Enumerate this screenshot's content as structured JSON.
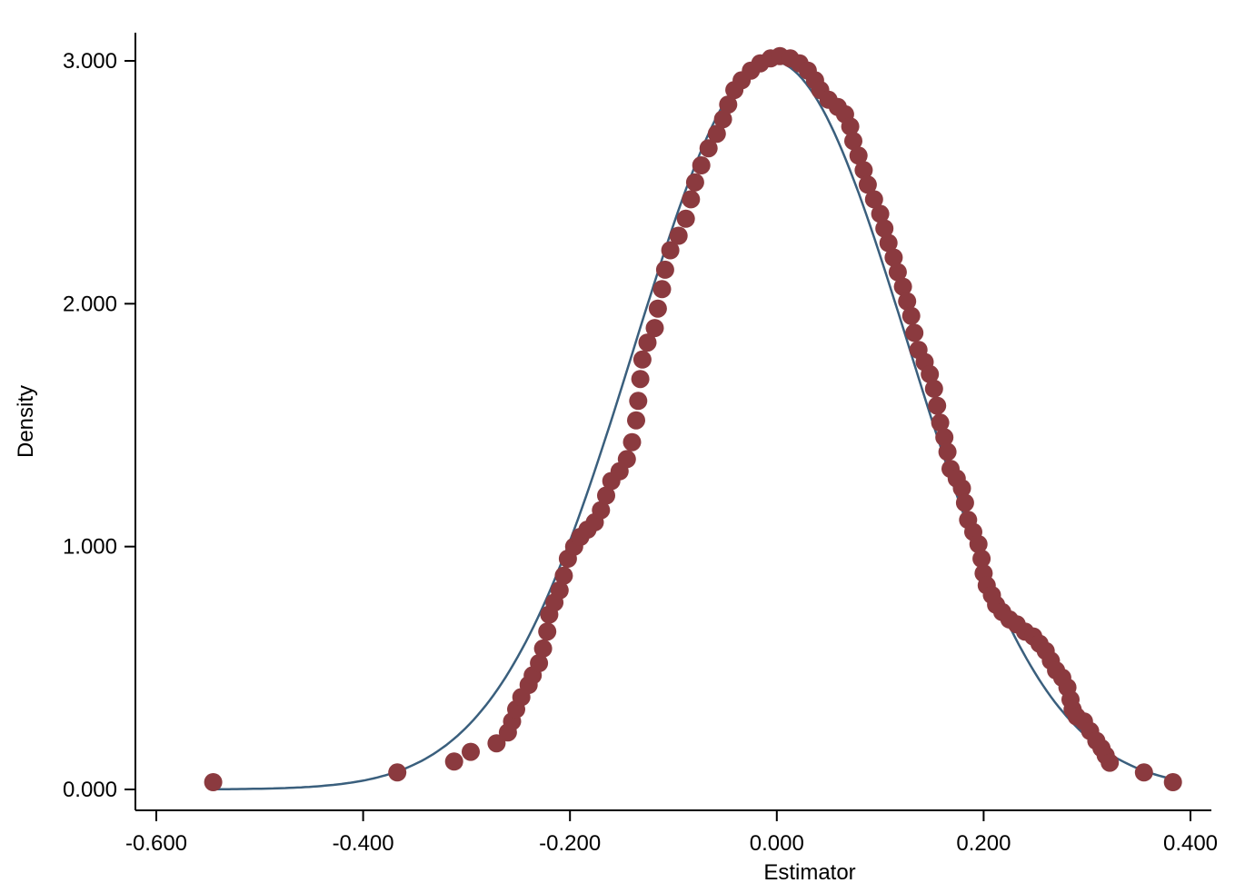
{
  "chart_data": {
    "type": "scatter",
    "title": "",
    "xlabel": "Estimator",
    "ylabel": "Density",
    "xlim": [
      -0.6,
      0.4
    ],
    "ylim": [
      0,
      3
    ],
    "x_ticks": [
      -0.6,
      -0.4,
      -0.2,
      0.0,
      0.2,
      0.4
    ],
    "x_tick_labels": [
      "-0.600",
      "-0.400",
      "-0.200",
      "0.000",
      "0.200",
      "0.400"
    ],
    "y_ticks": [
      0,
      1,
      2,
      3
    ],
    "y_tick_labels": [
      "0.000",
      "1.000",
      "2.000",
      "3.000"
    ],
    "grid": false,
    "legend": "none",
    "colors": {
      "points": "#8b3a3f",
      "curve": "#3a5f7d",
      "axis": "#000000",
      "background": "#ffffff"
    },
    "series": [
      {
        "type": "scatter",
        "points": [
          [
            -0.545,
            0.03
          ],
          [
            -0.367,
            0.07
          ],
          [
            -0.312,
            0.115
          ],
          [
            -0.296,
            0.155
          ],
          [
            -0.271,
            0.19
          ],
          [
            -0.26,
            0.235
          ],
          [
            -0.256,
            0.28
          ],
          [
            -0.252,
            0.33
          ],
          [
            -0.247,
            0.38
          ],
          [
            -0.24,
            0.43
          ],
          [
            -0.236,
            0.47
          ],
          [
            -0.23,
            0.52
          ],
          [
            -0.226,
            0.58
          ],
          [
            -0.222,
            0.65
          ],
          [
            -0.22,
            0.72
          ],
          [
            -0.215,
            0.77
          ],
          [
            -0.21,
            0.82
          ],
          [
            -0.206,
            0.88
          ],
          [
            -0.202,
            0.95
          ],
          [
            -0.196,
            1.0
          ],
          [
            -0.19,
            1.04
          ],
          [
            -0.183,
            1.07
          ],
          [
            -0.176,
            1.1
          ],
          [
            -0.17,
            1.15
          ],
          [
            -0.165,
            1.21
          ],
          [
            -0.16,
            1.27
          ],
          [
            -0.152,
            1.31
          ],
          [
            -0.145,
            1.36
          ],
          [
            -0.14,
            1.43
          ],
          [
            -0.136,
            1.52
          ],
          [
            -0.134,
            1.6
          ],
          [
            -0.132,
            1.69
          ],
          [
            -0.13,
            1.77
          ],
          [
            -0.125,
            1.84
          ],
          [
            -0.118,
            1.9
          ],
          [
            -0.115,
            1.98
          ],
          [
            -0.111,
            2.06
          ],
          [
            -0.108,
            2.14
          ],
          [
            -0.103,
            2.22
          ],
          [
            -0.095,
            2.28
          ],
          [
            -0.088,
            2.35
          ],
          [
            -0.083,
            2.43
          ],
          [
            -0.079,
            2.5
          ],
          [
            -0.073,
            2.57
          ],
          [
            -0.066,
            2.64
          ],
          [
            -0.058,
            2.7
          ],
          [
            -0.052,
            2.76
          ],
          [
            -0.047,
            2.82
          ],
          [
            -0.041,
            2.88
          ],
          [
            -0.034,
            2.92
          ],
          [
            -0.025,
            2.96
          ],
          [
            -0.016,
            2.99
          ],
          [
            -0.006,
            3.01
          ],
          [
            0.003,
            3.02
          ],
          [
            0.013,
            3.01
          ],
          [
            0.022,
            2.99
          ],
          [
            0.03,
            2.96
          ],
          [
            0.037,
            2.92
          ],
          [
            0.042,
            2.88
          ],
          [
            0.05,
            2.84
          ],
          [
            0.059,
            2.81
          ],
          [
            0.066,
            2.78
          ],
          [
            0.071,
            2.73
          ],
          [
            0.074,
            2.67
          ],
          [
            0.079,
            2.61
          ],
          [
            0.084,
            2.55
          ],
          [
            0.088,
            2.49
          ],
          [
            0.094,
            2.43
          ],
          [
            0.1,
            2.37
          ],
          [
            0.104,
            2.31
          ],
          [
            0.108,
            2.25
          ],
          [
            0.113,
            2.19
          ],
          [
            0.117,
            2.13
          ],
          [
            0.122,
            2.07
          ],
          [
            0.126,
            2.01
          ],
          [
            0.13,
            1.95
          ],
          [
            0.133,
            1.88
          ],
          [
            0.137,
            1.81
          ],
          [
            0.143,
            1.76
          ],
          [
            0.148,
            1.71
          ],
          [
            0.152,
            1.65
          ],
          [
            0.155,
            1.58
          ],
          [
            0.158,
            1.51
          ],
          [
            0.162,
            1.45
          ],
          [
            0.165,
            1.39
          ],
          [
            0.168,
            1.32
          ],
          [
            0.174,
            1.28
          ],
          [
            0.179,
            1.24
          ],
          [
            0.182,
            1.18
          ],
          [
            0.185,
            1.11
          ],
          [
            0.19,
            1.06
          ],
          [
            0.195,
            1.01
          ],
          [
            0.198,
            0.95
          ],
          [
            0.2,
            0.89
          ],
          [
            0.203,
            0.84
          ],
          [
            0.208,
            0.8
          ],
          [
            0.212,
            0.76
          ],
          [
            0.218,
            0.73
          ],
          [
            0.225,
            0.7
          ],
          [
            0.232,
            0.68
          ],
          [
            0.24,
            0.65
          ],
          [
            0.248,
            0.63
          ],
          [
            0.254,
            0.6
          ],
          [
            0.26,
            0.57
          ],
          [
            0.265,
            0.53
          ],
          [
            0.27,
            0.49
          ],
          [
            0.276,
            0.46
          ],
          [
            0.281,
            0.42
          ],
          [
            0.284,
            0.37
          ],
          [
            0.286,
            0.33
          ],
          [
            0.29,
            0.3
          ],
          [
            0.297,
            0.28
          ],
          [
            0.303,
            0.24
          ],
          [
            0.309,
            0.2
          ],
          [
            0.314,
            0.17
          ],
          [
            0.318,
            0.14
          ],
          [
            0.322,
            0.11
          ],
          [
            0.355,
            0.07
          ],
          [
            0.383,
            0.03
          ]
        ]
      },
      {
        "type": "line",
        "function": "normal_density",
        "mean": -0.005,
        "sd": 0.133,
        "x_range": [
          -0.545,
          0.385
        ]
      }
    ]
  }
}
